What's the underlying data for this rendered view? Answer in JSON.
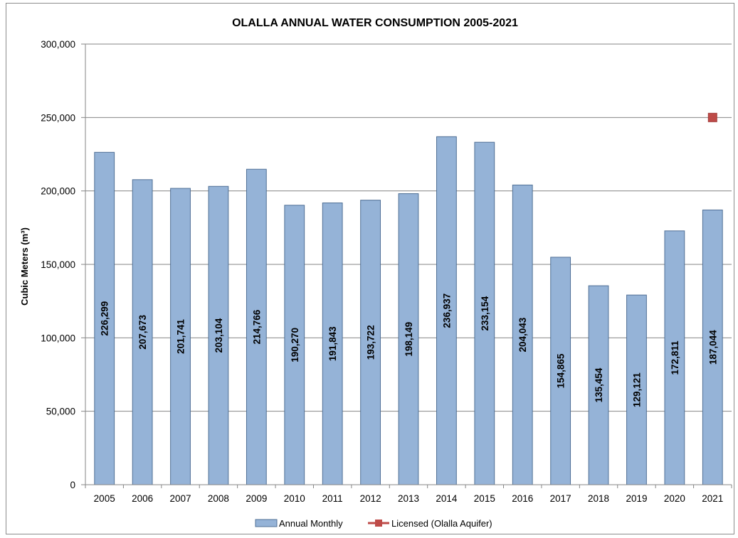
{
  "chart_data": {
    "type": "bar",
    "title": "OLALLA ANNUAL WATER CONSUMPTION 2005-2021",
    "xlabel": "",
    "ylabel": "Cubic Meters (m³)",
    "ylim": [
      0,
      300000
    ],
    "yticks": [
      0,
      50000,
      100000,
      150000,
      200000,
      250000,
      300000
    ],
    "ytick_labels": [
      "0",
      "50,000",
      "100,000",
      "150,000",
      "200,000",
      "250,000",
      "300,000"
    ],
    "grid": true,
    "categories": [
      "2005",
      "2006",
      "2007",
      "2008",
      "2009",
      "2010",
      "2011",
      "2012",
      "2013",
      "2014",
      "2015",
      "2016",
      "2017",
      "2018",
      "2019",
      "2020",
      "2021"
    ],
    "series": [
      {
        "name": "Annual Monthly",
        "type": "bar",
        "color": "#95b3d7",
        "values": [
          226299,
          207673,
          201741,
          203104,
          214766,
          190270,
          191843,
          193722,
          198149,
          236937,
          233154,
          204043,
          154865,
          135454,
          129121,
          172811,
          187044
        ],
        "value_labels": [
          "226,299",
          "207,673",
          "201,741",
          "203,104",
          "214,766",
          "190,270",
          "191,843",
          "193,722",
          "198,149",
          "236,937",
          "233,154",
          "204,043",
          "154,865",
          "135,454",
          "129,121",
          "172,811",
          "187,044"
        ]
      },
      {
        "name": "Licensed (Olalla Aquifer)",
        "type": "line",
        "color": "#be4b48",
        "points": [
          {
            "x": "2021",
            "y": 250000
          }
        ]
      }
    ],
    "legend_position": "bottom"
  }
}
